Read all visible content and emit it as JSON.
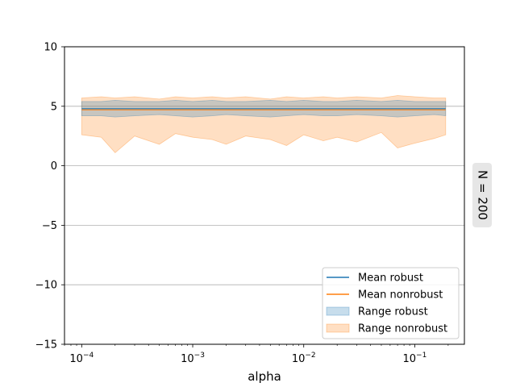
{
  "chart_data": {
    "type": "area",
    "x_scale": "log",
    "x": [
      0.0001,
      0.00015,
      0.0002,
      0.0003,
      0.0005,
      0.0007,
      0.001,
      0.0015,
      0.002,
      0.003,
      0.005,
      0.007,
      0.01,
      0.015,
      0.02,
      0.03,
      0.05,
      0.07,
      0.1,
      0.15,
      0.19
    ],
    "xlim": [
      7e-05,
      0.28
    ],
    "ylim": [
      -15,
      10
    ],
    "xlabel": "alpha",
    "ylabel": "",
    "x_tick_labels": [
      {
        "value": 0.0001,
        "base": "10",
        "exp": "−4"
      },
      {
        "value": 0.001,
        "base": "10",
        "exp": "−3"
      },
      {
        "value": 0.01,
        "base": "10",
        "exp": "−2"
      },
      {
        "value": 0.1,
        "base": "10",
        "exp": "−1"
      }
    ],
    "y_ticks": [
      10,
      5,
      0,
      -5,
      -10,
      -15
    ],
    "y_tick_labels": [
      "10",
      "5",
      "0",
      "−5",
      "−10",
      "−15"
    ],
    "grid": "horizontal at y ticks",
    "legend_position": "lower-right",
    "side_label": "N = 200",
    "series": [
      {
        "name": "Mean robust",
        "kind": "line",
        "color": "#1f77b4",
        "values": [
          4.8,
          4.8,
          4.8,
          4.8,
          4.8,
          4.8,
          4.8,
          4.8,
          4.8,
          4.8,
          4.8,
          4.8,
          4.8,
          4.8,
          4.8,
          4.8,
          4.8,
          4.8,
          4.8,
          4.8,
          4.8
        ]
      },
      {
        "name": "Mean nonrobust",
        "kind": "line",
        "color": "#ff7f0e",
        "values": [
          4.7,
          4.7,
          4.7,
          4.7,
          4.7,
          4.7,
          4.7,
          4.7,
          4.7,
          4.7,
          4.7,
          4.7,
          4.7,
          4.7,
          4.7,
          4.7,
          4.7,
          4.7,
          4.7,
          4.7,
          4.7
        ]
      },
      {
        "name": "Range robust",
        "kind": "band",
        "color": "#1f77b4",
        "lower": [
          4.2,
          4.2,
          4.1,
          4.2,
          4.3,
          4.2,
          4.1,
          4.2,
          4.3,
          4.2,
          4.1,
          4.2,
          4.3,
          4.2,
          4.2,
          4.3,
          4.2,
          4.1,
          4.2,
          4.3,
          4.2
        ],
        "upper": [
          5.4,
          5.4,
          5.5,
          5.4,
          5.4,
          5.5,
          5.4,
          5.5,
          5.4,
          5.4,
          5.5,
          5.4,
          5.5,
          5.4,
          5.4,
          5.5,
          5.4,
          5.5,
          5.4,
          5.4,
          5.4
        ]
      },
      {
        "name": "Range nonrobust",
        "kind": "band",
        "color": "#ff7f0e",
        "lower": [
          2.6,
          2.4,
          1.1,
          2.5,
          1.8,
          2.7,
          2.4,
          2.2,
          1.8,
          2.5,
          2.2,
          1.7,
          2.6,
          2.1,
          2.4,
          2.0,
          2.8,
          1.5,
          1.9,
          2.3,
          2.6
        ],
        "upper": [
          5.7,
          5.8,
          5.7,
          5.8,
          5.6,
          5.8,
          5.7,
          5.8,
          5.7,
          5.8,
          5.6,
          5.8,
          5.7,
          5.8,
          5.7,
          5.8,
          5.7,
          5.9,
          5.8,
          5.7,
          5.7
        ]
      }
    ]
  }
}
